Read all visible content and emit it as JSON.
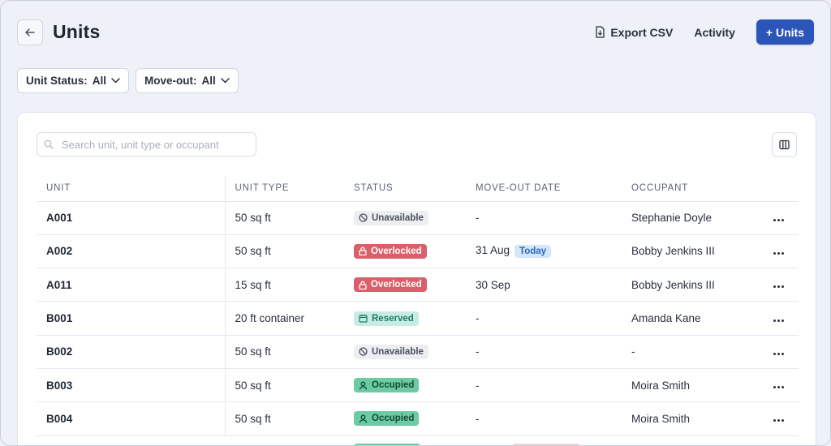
{
  "header": {
    "title": "Units",
    "export_label": "Export CSV",
    "activity_label": "Activity",
    "add_units_label": "+ Units"
  },
  "filters": {
    "unit_status": {
      "label": "Unit Status:",
      "value": "All"
    },
    "move_out": {
      "label": "Move-out:",
      "value": "All"
    }
  },
  "search": {
    "placeholder": "Search unit, unit type or occupant"
  },
  "table": {
    "columns": [
      "UNIT",
      "UNIT TYPE",
      "STATUS",
      "MOVE-OUT DATE",
      "OCCUPANT"
    ],
    "rows": [
      {
        "unit": "A001",
        "type": "50 sq ft",
        "status": "Unavailable",
        "status_kind": "unavailable",
        "move_out": "-",
        "today": "",
        "occupant": "Stephanie Doyle"
      },
      {
        "unit": "A002",
        "type": "50 sq ft",
        "status": "Overlocked",
        "status_kind": "overlocked",
        "move_out": "31 Aug",
        "today": "Today",
        "occupant": "Bobby Jenkins III"
      },
      {
        "unit": "A011",
        "type": "15 sq ft",
        "status": "Overlocked",
        "status_kind": "overlocked",
        "move_out": "30 Sep",
        "today": "",
        "occupant": "Bobby Jenkins III"
      },
      {
        "unit": "B001",
        "type": "20 ft container",
        "status": "Reserved",
        "status_kind": "reserved",
        "move_out": "-",
        "today": "",
        "occupant": "Amanda Kane"
      },
      {
        "unit": "B002",
        "type": "50 sq ft",
        "status": "Unavailable",
        "status_kind": "unavailable",
        "move_out": "-",
        "today": "",
        "occupant": "-"
      },
      {
        "unit": "B003",
        "type": "50 sq ft",
        "status": "Occupied",
        "status_kind": "occupied",
        "move_out": "-",
        "today": "",
        "occupant": "Moira Smith"
      },
      {
        "unit": "B004",
        "type": "50 sq ft",
        "status": "Occupied",
        "status_kind": "occupied",
        "move_out": "-",
        "today": "",
        "occupant": "Moira Smith"
      }
    ]
  },
  "colors": {
    "primary": "#2b55b8",
    "overlocked": "#d9606a",
    "occupied": "#6ccba3",
    "reserved": "#c8ece3",
    "today": "#d4e6fa"
  }
}
